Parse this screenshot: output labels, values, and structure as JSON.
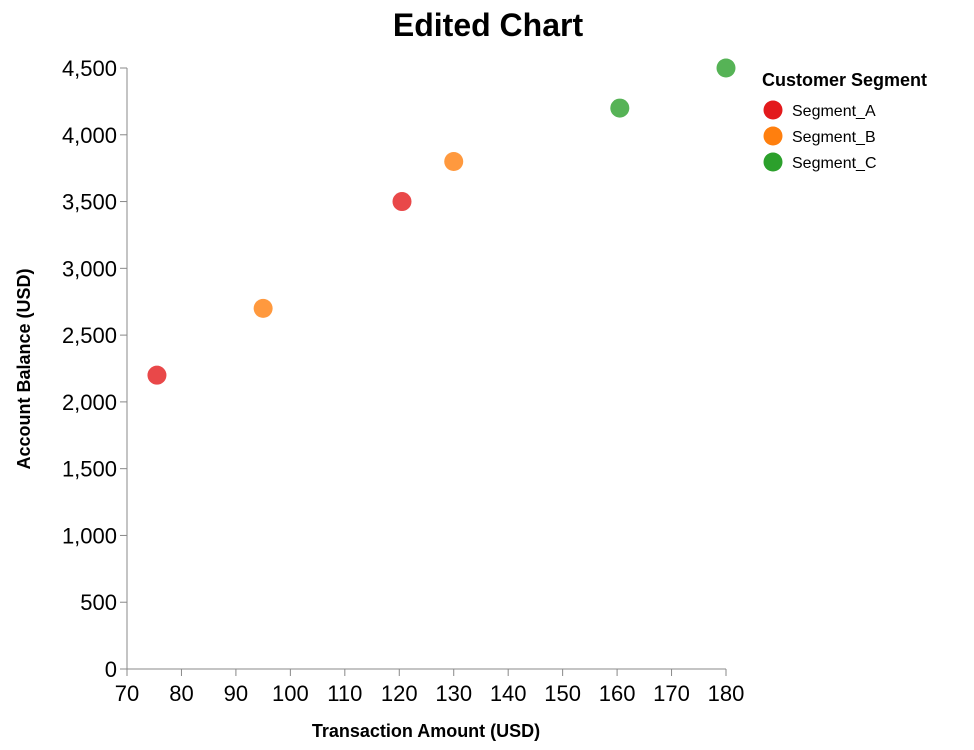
{
  "chart_data": {
    "type": "scatter",
    "title": "Edited Chart",
    "xlabel": "Transaction Amount (USD)",
    "ylabel": "Account Balance (USD)",
    "xlim": [
      70,
      180
    ],
    "ylim": [
      0,
      4500
    ],
    "x_ticks": [
      70,
      80,
      90,
      100,
      110,
      120,
      130,
      140,
      150,
      160,
      170,
      180
    ],
    "y_ticks": [
      0,
      500,
      1000,
      1500,
      2000,
      2500,
      3000,
      3500,
      4000,
      4500
    ],
    "y_tick_labels": [
      "0",
      "500",
      "1,000",
      "1,500",
      "2,000",
      "2,500",
      "3,000",
      "3,500",
      "4,000",
      "4,500"
    ],
    "grid": false,
    "legend": {
      "title": "Customer Segment",
      "placement": "top-right"
    },
    "series": [
      {
        "name": "Segment_A",
        "color": "#e31a1c",
        "points": [
          {
            "x": 75.5,
            "y": 2200
          },
          {
            "x": 120.5,
            "y": 3500
          }
        ]
      },
      {
        "name": "Segment_B",
        "color": "#ff7f0e",
        "points": [
          {
            "x": 95.0,
            "y": 2700
          },
          {
            "x": 130.0,
            "y": 3800
          }
        ]
      },
      {
        "name": "Segment_C",
        "color": "#2ca02c",
        "points": [
          {
            "x": 160.5,
            "y": 4200
          },
          {
            "x": 180.0,
            "y": 4500
          }
        ]
      }
    ]
  }
}
